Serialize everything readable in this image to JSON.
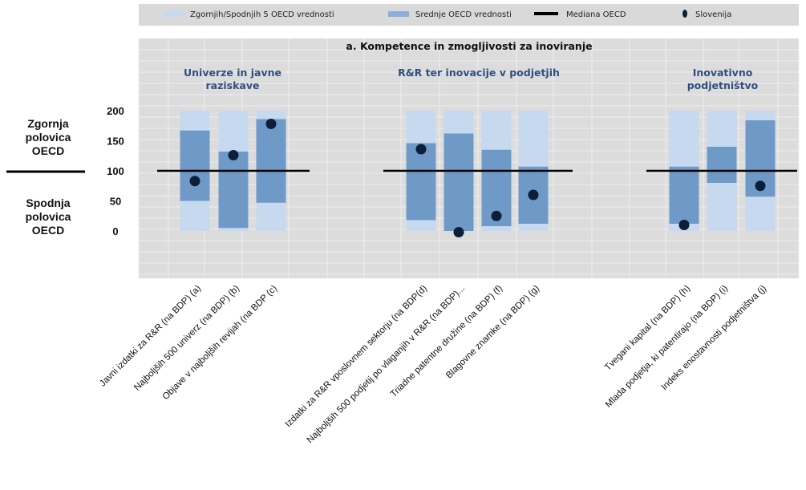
{
  "side_labels": {
    "upper": "Zgornja\npolovica\nOECD",
    "lower": "Spodnja\npolovica\nOECD"
  },
  "legend": [
    {
      "label": "Zgornjih/Spodnjih 5 OECD vrednosti",
      "symbol": "light-bar",
      "color": "#c6d9ef"
    },
    {
      "label": "Srednje OECD vrednosti",
      "symbol": "mid-bar",
      "color": "#8cb0d9"
    },
    {
      "label": "Mediana OECD",
      "symbol": "line",
      "color": "#000000"
    },
    {
      "label": "Slovenija",
      "symbol": "dot",
      "color": "#0b1e3a"
    }
  ],
  "colors": {
    "panel": "#dcdcdc",
    "outer_band": "#c6d9ef",
    "middle_band": "#6f9ac8",
    "median": "#000000",
    "slovenia": "#0b1e3a",
    "group_title": "#2f4f7f"
  },
  "chart_data": {
    "type": "bar",
    "title": "a. Kompetence in zmogljivosti za inoviranje",
    "yticks": [
      0,
      50,
      100,
      150,
      200
    ],
    "median": 100,
    "groups": [
      {
        "title": "Univerze in javne\nraziskave",
        "indicators": [
          {
            "label": "Javni izdatki za R&R (na BDP) (a)",
            "outer": [
              0,
              200
            ],
            "middle": [
              50,
              167
            ],
            "slovenia": 83
          },
          {
            "label": "Najboljših 500 univerz (na BDP) (b)",
            "outer": [
              0,
              200
            ],
            "middle": [
              5,
              132
            ],
            "slovenia": 126
          },
          {
            "label": "Objave v najboljših revijah (na BDP (c)",
            "outer": [
              0,
              200
            ],
            "middle": [
              47,
              186
            ],
            "slovenia": 178
          }
        ]
      },
      {
        "title": "R&R ter inovacije v podjetjih",
        "indicators": [
          {
            "label": "Izdatki za R&R vposlovnem sektorju (na BDP(d)",
            "outer": [
              0,
              200
            ],
            "middle": [
              18,
              146
            ],
            "slovenia": 136
          },
          {
            "label": "Najboljših 500 podjetij po vlaganjih v R&R (na BDP)...",
            "outer": [
              0,
              200
            ],
            "middle": [
              0,
              162
            ],
            "slovenia": -2
          },
          {
            "label": "Triadne patentne družine (na BDP) (f)",
            "outer": [
              0,
              200
            ],
            "middle": [
              8,
              135
            ],
            "slovenia": 25
          },
          {
            "label": "Blagovne znamke (na BDP) (g)",
            "outer": [
              0,
              200
            ],
            "middle": [
              12,
              107
            ],
            "slovenia": 60
          }
        ]
      },
      {
        "title": "Inovativno\npodjetništvo",
        "indicators": [
          {
            "label": "Tvegani kapital (na BDP) (h)",
            "outer": [
              0,
              200
            ],
            "middle": [
              12,
              107
            ],
            "slovenia": 10
          },
          {
            "label": "Mlada podjetja, ki patentirajo (na BDP) (i)",
            "outer": [
              0,
              200
            ],
            "middle": [
              80,
              140
            ],
            "slovenia": null
          },
          {
            "label": "Indeks enostavnosti podjetništva (j)",
            "outer": [
              0,
              200
            ],
            "middle": [
              57,
              184
            ],
            "slovenia": 75
          }
        ]
      }
    ],
    "ylim": [
      -80,
      300
    ]
  }
}
